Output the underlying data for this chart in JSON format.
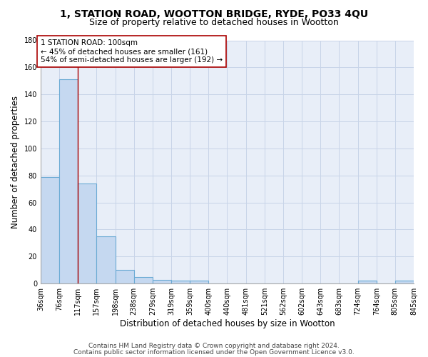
{
  "title1": "1, STATION ROAD, WOOTTON BRIDGE, RYDE, PO33 4QU",
  "title2": "Size of property relative to detached houses in Wootton",
  "xlabel": "Distribution of detached houses by size in Wootton",
  "ylabel": "Number of detached properties",
  "bar_values": [
    79,
    151,
    74,
    35,
    10,
    5,
    3,
    2,
    2,
    0,
    0,
    0,
    0,
    0,
    0,
    0,
    0,
    2,
    0,
    2
  ],
  "bin_labels": [
    "36sqm",
    "76sqm",
    "117sqm",
    "157sqm",
    "198sqm",
    "238sqm",
    "279sqm",
    "319sqm",
    "359sqm",
    "400sqm",
    "440sqm",
    "481sqm",
    "521sqm",
    "562sqm",
    "602sqm",
    "643sqm",
    "683sqm",
    "724sqm",
    "764sqm",
    "805sqm",
    "845sqm"
  ],
  "bar_color": "#c5d8f0",
  "bar_edge_color": "#6aaad4",
  "vline_x": 2,
  "vline_color": "#aa0000",
  "annotation_text": "1 STATION ROAD: 100sqm\n← 45% of detached houses are smaller (161)\n54% of semi-detached houses are larger (192) →",
  "ylim": [
    0,
    180
  ],
  "yticks": [
    0,
    20,
    40,
    60,
    80,
    100,
    120,
    140,
    160,
    180
  ],
  "grid_color": "#c8d4e8",
  "background_color": "#e8eef8",
  "footer1": "Contains HM Land Registry data © Crown copyright and database right 2024.",
  "footer2": "Contains public sector information licensed under the Open Government Licence v3.0.",
  "title_fontsize": 10,
  "subtitle_fontsize": 9,
  "axis_label_fontsize": 8.5,
  "tick_fontsize": 7,
  "annotation_fontsize": 7.5,
  "footer_fontsize": 6.5
}
